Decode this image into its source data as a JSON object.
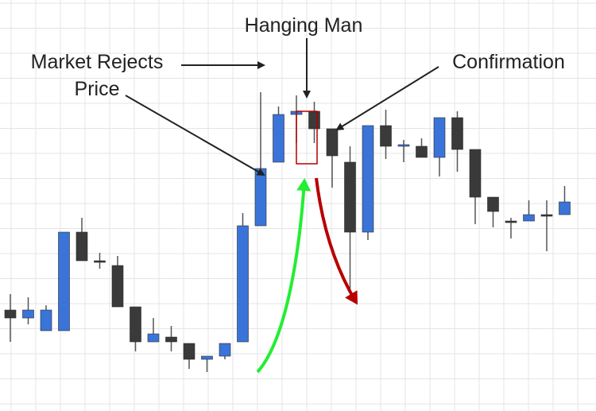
{
  "chart_data": {
    "type": "candlestick",
    "title": "",
    "xlabel": "",
    "ylabel": "",
    "grid": true,
    "legend": "none",
    "ylim": [
      0,
      100
    ],
    "colors": {
      "bull": "#3a74d8",
      "bear": "#3a3a3a",
      "wick": "#555555",
      "up_arrow": "#22ee33",
      "down_arrow": "#b80000",
      "highlight_box": "#b30000"
    },
    "candles": [
      {
        "open": 27.5,
        "close": 25.0,
        "high": 32.5,
        "low": 17.5
      },
      {
        "open": 25.0,
        "close": 27.5,
        "high": 31.5,
        "low": 23.0
      },
      {
        "open": 21.0,
        "close": 27.5,
        "high": 29.0,
        "low": 21.0
      },
      {
        "open": 21.0,
        "close": 52.0,
        "high": 52.0,
        "low": 21.0
      },
      {
        "open": 52.0,
        "close": 43.0,
        "high": 56.5,
        "low": 43.0
      },
      {
        "open": 43.0,
        "close": 43.0,
        "high": 45.5,
        "low": 40.5
      },
      {
        "open": 41.5,
        "close": 28.5,
        "high": 44.5,
        "low": 28.5
      },
      {
        "open": 28.5,
        "close": 17.5,
        "high": 28.5,
        "low": 14.5
      },
      {
        "open": 17.5,
        "close": 20.0,
        "high": 25.0,
        "low": 17.5
      },
      {
        "open": 19.0,
        "close": 17.5,
        "high": 22.5,
        "low": 14.5
      },
      {
        "open": 17.0,
        "close": 12.0,
        "high": 17.0,
        "low": 9.0
      },
      {
        "open": 12.0,
        "close": 13.0,
        "high": 13.0,
        "low": 8.0
      },
      {
        "open": 13.0,
        "close": 17.0,
        "high": 17.0,
        "low": 12.0
      },
      {
        "open": 17.5,
        "close": 54.0,
        "high": 58.0,
        "low": 17.5
      },
      {
        "open": 54.0,
        "close": 72.0,
        "high": 96.0,
        "low": 54.0
      },
      {
        "open": 74.0,
        "close": 89.0,
        "high": 91.5,
        "low": 74.0
      },
      {
        "open": 89.0,
        "close": 90.0,
        "high": 95.0,
        "low": 80.0
      },
      {
        "open": 90.0,
        "close": 84.5,
        "high": 93.0,
        "low": 80.0
      },
      {
        "open": 84.5,
        "close": 76.0,
        "high": 84.5,
        "low": 66.0
      },
      {
        "open": 74.0,
        "close": 52.0,
        "high": 79.0,
        "low": 33.0
      },
      {
        "open": 52.0,
        "close": 85.5,
        "high": 85.5,
        "low": 49.5
      },
      {
        "open": 85.5,
        "close": 79.0,
        "high": 90.5,
        "low": 75.0
      },
      {
        "open": 79.0,
        "close": 79.5,
        "high": 81.0,
        "low": 74.0
      },
      {
        "open": 79.0,
        "close": 75.5,
        "high": 81.5,
        "low": 75.5
      },
      {
        "open": 75.5,
        "close": 88.0,
        "high": 88.0,
        "low": 69.5
      },
      {
        "open": 88.0,
        "close": 78.0,
        "high": 90.0,
        "low": 71.0
      },
      {
        "open": 78.0,
        "close": 63.0,
        "high": 78.0,
        "low": 54.5
      },
      {
        "open": 63.0,
        "close": 58.5,
        "high": 63.0,
        "low": 53.5
      },
      {
        "open": 55.5,
        "close": 55.5,
        "high": 56.5,
        "low": 50.0
      },
      {
        "open": 55.5,
        "close": 57.5,
        "high": 62.0,
        "low": 55.5
      },
      {
        "open": 57.5,
        "close": 57.5,
        "high": 62.0,
        "low": 46.0
      },
      {
        "open": 57.5,
        "close": 61.5,
        "high": 66.5,
        "low": 57.5
      }
    ],
    "annotations": {
      "hanging_man": "Hanging Man",
      "market_rejects_line1": "Market Rejects",
      "market_rejects_line2": "Price",
      "confirmation": "Confirmation"
    }
  }
}
